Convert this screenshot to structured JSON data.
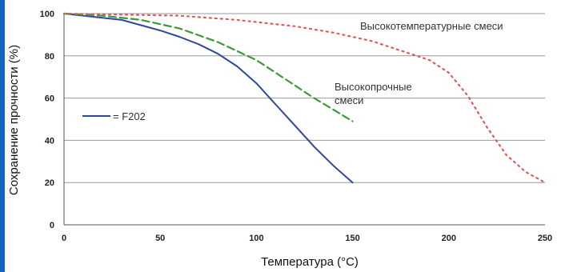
{
  "chart_data": {
    "type": "line",
    "xlabel": "Температура (°C)",
    "ylabel": "Сохранение прочности (%)",
    "xlim": [
      0,
      250
    ],
    "ylim": [
      0,
      100
    ],
    "x_ticks": [
      0,
      50,
      100,
      150,
      200,
      250
    ],
    "y_ticks": [
      0,
      20,
      40,
      60,
      80,
      100
    ],
    "grid": "horizontal",
    "series": [
      {
        "name": "F202",
        "color": "#2f47a0",
        "style": "solid",
        "x": [
          0,
          10,
          20,
          30,
          40,
          50,
          60,
          70,
          80,
          90,
          100,
          110,
          120,
          130,
          140,
          150
        ],
        "y": [
          100,
          99,
          98,
          97,
          94.5,
          92,
          89,
          85.5,
          81,
          75,
          67,
          57,
          47,
          37,
          28,
          20
        ]
      },
      {
        "name": "Высокопрочные смеси",
        "color": "#3a9a3a",
        "style": "dashed",
        "x": [
          0,
          20,
          40,
          60,
          80,
          100,
          110,
          120,
          130,
          140,
          150
        ],
        "y": [
          100,
          99,
          97,
          93,
          86.5,
          78,
          72,
          66,
          60,
          54.5,
          49
        ]
      },
      {
        "name": "Высокотемпературные смеси",
        "color": "#e05a5a",
        "style": "dotted",
        "x": [
          0,
          30,
          60,
          90,
          120,
          140,
          160,
          180,
          190,
          200,
          210,
          220,
          230,
          240,
          250
        ],
        "y": [
          100,
          99.5,
          99,
          97,
          94,
          91,
          87,
          81,
          78,
          72,
          61,
          46,
          33,
          25,
          20
        ]
      }
    ],
    "legend": [
      {
        "label": "= F202",
        "color": "#2f47a0"
      }
    ],
    "annotations": [
      {
        "lines": [
          "Высокотемпературные смеси"
        ]
      },
      {
        "lines": [
          "Высокопрочные",
          "смеси"
        ]
      }
    ]
  }
}
